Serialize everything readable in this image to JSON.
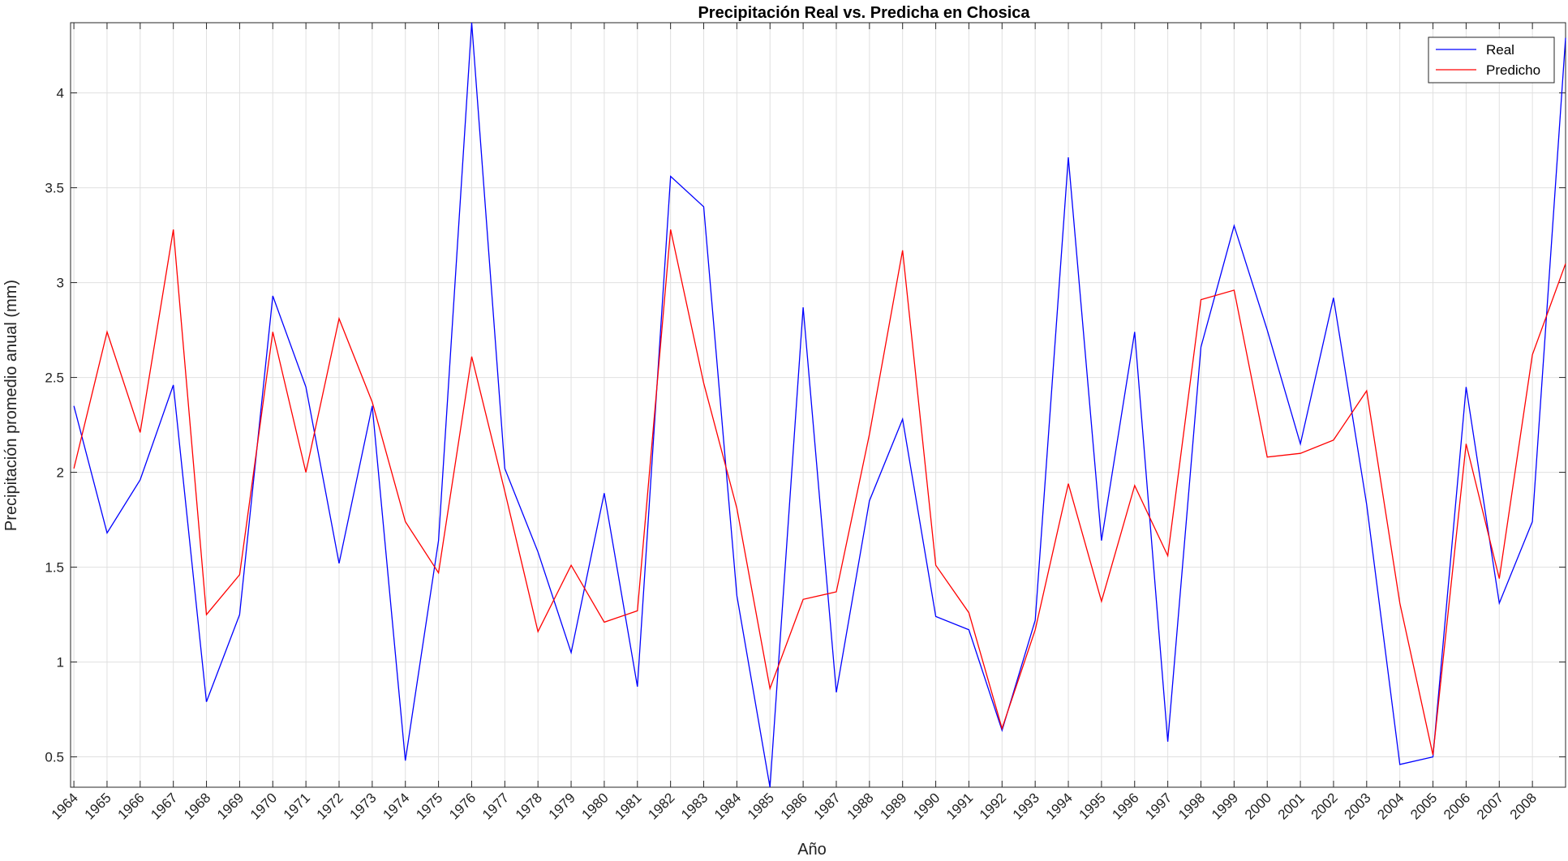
{
  "chart_data": {
    "type": "line",
    "title": "Precipitación Real vs. Predicha en Chosica",
    "xlabel": "Año",
    "ylabel": "Precipitación promedio anual (mm)",
    "x": [
      1964,
      1965,
      1966,
      1967,
      1968,
      1969,
      1970,
      1971,
      1972,
      1973,
      1974,
      1975,
      1976,
      1977,
      1978,
      1979,
      1980,
      1981,
      1982,
      1983,
      1984,
      1985,
      1986,
      1987,
      1988,
      1989,
      1990,
      1991,
      1992,
      1993,
      1994,
      1995,
      1996,
      1997,
      1998,
      1999,
      2000,
      2001,
      2002,
      2003,
      2004,
      2005,
      2006,
      2007,
      2008,
      2009
    ],
    "xticks": [
      1964,
      1965,
      1966,
      1967,
      1968,
      1969,
      1970,
      1971,
      1972,
      1973,
      1974,
      1975,
      1976,
      1977,
      1978,
      1979,
      1980,
      1981,
      1982,
      1983,
      1984,
      1985,
      1986,
      1987,
      1988,
      1989,
      1990,
      1991,
      1992,
      1993,
      1994,
      1995,
      1996,
      1997,
      1998,
      1999,
      2000,
      2001,
      2002,
      2003,
      2004,
      2005,
      2006,
      2007,
      2008
    ],
    "xlim": [
      1963.9,
      2009
    ],
    "ylim": [
      0.34,
      4.37
    ],
    "yticks": [
      0.5,
      1,
      1.5,
      2,
      2.5,
      3,
      3.5,
      4
    ],
    "ytick_labels": [
      "0.5",
      "1",
      "1.5",
      "2",
      "2.5",
      "3",
      "3.5",
      "4"
    ],
    "grid": true,
    "legend_position": "top-right",
    "series": [
      {
        "name": "Real",
        "color": "#0000ff",
        "values": [
          2.35,
          1.68,
          1.96,
          2.46,
          0.79,
          1.25,
          2.93,
          2.45,
          1.52,
          2.35,
          0.48,
          1.64,
          4.37,
          2.02,
          1.58,
          1.05,
          1.89,
          0.87,
          3.56,
          3.4,
          1.35,
          0.34,
          2.87,
          0.84,
          1.85,
          2.28,
          1.24,
          1.17,
          0.64,
          1.22,
          3.66,
          1.64,
          2.74,
          0.58,
          2.66,
          3.3,
          2.75,
          2.15,
          2.92,
          1.83,
          0.46,
          0.5,
          2.45,
          1.31,
          1.74,
          4.29
        ]
      },
      {
        "name": "Predicho",
        "color": "#ff0000",
        "values": [
          2.02,
          2.74,
          2.21,
          3.28,
          1.25,
          1.46,
          2.74,
          2.0,
          2.81,
          2.37,
          1.74,
          1.47,
          2.61,
          1.9,
          1.16,
          1.51,
          1.21,
          1.27,
          3.28,
          2.47,
          1.81,
          0.86,
          1.33,
          1.37,
          2.2,
          3.17,
          1.51,
          1.26,
          0.65,
          1.17,
          1.94,
          1.32,
          1.93,
          1.56,
          2.91,
          2.96,
          2.08,
          2.1,
          2.17,
          2.43,
          1.31,
          0.51,
          2.15,
          1.44,
          2.62,
          3.1
        ]
      }
    ]
  }
}
